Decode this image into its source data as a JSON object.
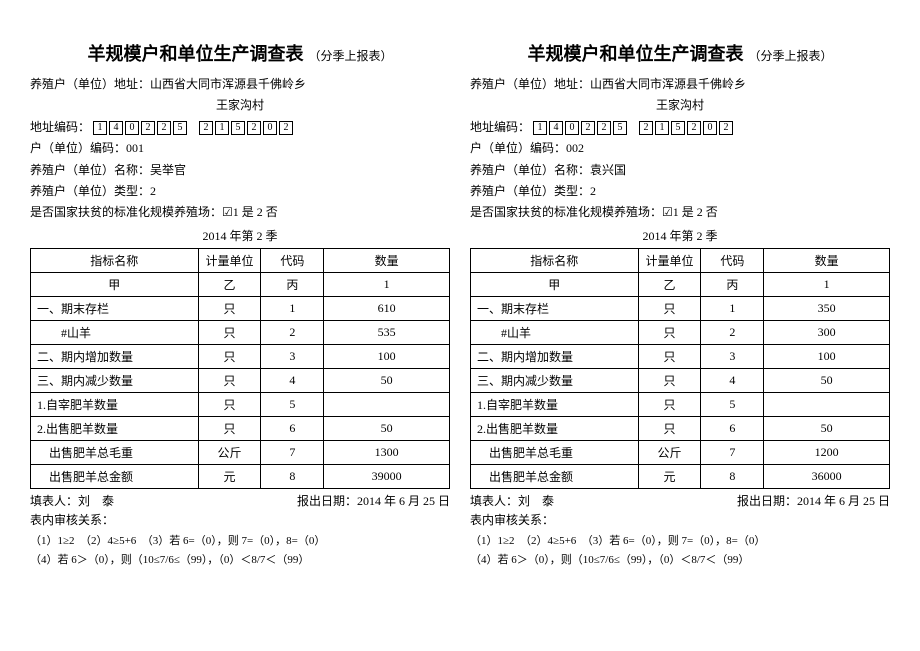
{
  "forms": [
    {
      "title": "羊规模户和单位生产调查表",
      "subtitle": "（分季上报表）",
      "address_label": "养殖户（单位）地址：",
      "address_line1": "山西省大同市浑源县千佛岭乡",
      "address_line2": "王家沟村",
      "code_label": "地址编码：",
      "code_digits": [
        "1",
        "4",
        "0",
        "2",
        "2",
        "5",
        " ",
        "2",
        "1",
        "5",
        "2",
        "0",
        "2"
      ],
      "household_code_label": "户（单位）编码：",
      "household_code": "001",
      "name_label": "养殖户（单位）名称：",
      "name": "吴举官",
      "type_label": "养殖户（单位）类型：",
      "type": "2",
      "poverty_label": "是否国家扶贫的标准化规模养殖场：",
      "poverty_options": "☑1 是 2 否",
      "quarter": "2014 年第 2 季",
      "headers": {
        "name": "指标名称",
        "unit": "计量单位",
        "code": "代码",
        "qty": "数量"
      },
      "header2": {
        "name": "甲",
        "unit": "乙",
        "code": "丙",
        "qty": "1"
      },
      "rows": [
        {
          "name": "一、期末存栏",
          "unit": "只",
          "code": "1",
          "qty": "610"
        },
        {
          "name": "　　#山羊",
          "unit": "只",
          "code": "2",
          "qty": "535"
        },
        {
          "name": "二、期内增加数量",
          "unit": "只",
          "code": "3",
          "qty": "100"
        },
        {
          "name": "三、期内减少数量",
          "unit": "只",
          "code": "4",
          "qty": "50"
        },
        {
          "name": "1.自宰肥羊数量",
          "unit": "只",
          "code": "5",
          "qty": ""
        },
        {
          "name": "2.出售肥羊数量",
          "unit": "只",
          "code": "6",
          "qty": "50"
        },
        {
          "name": "　出售肥羊总毛重",
          "unit": "公斤",
          "code": "7",
          "qty": "1300"
        },
        {
          "name": "　出售肥羊总金额",
          "unit": "元",
          "code": "8",
          "qty": "39000"
        }
      ],
      "filler_label": "填表人：",
      "filler": "刘　泰",
      "report_date_label": "报出日期：",
      "report_date": "2014 年 6 月 25 日",
      "audit_label": "表内审核关系：",
      "rule1": "（1）1≥2　（2）4≥5+6　（3）若 6=（0），则 7=（0），8=（0）",
      "rule2": "（4）若 6＞（0），则（10≤7/6≤（99），（0）＜8/7＜（99）"
    },
    {
      "title": "羊规模户和单位生产调查表",
      "subtitle": "（分季上报表）",
      "address_label": "养殖户（单位）地址：",
      "address_line1": "山西省大同市浑源县千佛岭乡",
      "address_line2": "王家沟村",
      "code_label": "地址编码：",
      "code_digits": [
        "1",
        "4",
        "0",
        "2",
        "2",
        "5",
        " ",
        "2",
        "1",
        "5",
        "2",
        "0",
        "2"
      ],
      "household_code_label": "户（单位）编码：",
      "household_code": "002",
      "name_label": "养殖户（单位）名称：",
      "name": "袁兴国",
      "type_label": "养殖户（单位）类型：",
      "type": "2",
      "poverty_label": "是否国家扶贫的标准化规模养殖场：",
      "poverty_options": "☑1 是 2 否",
      "quarter": "2014 年第 2 季",
      "headers": {
        "name": "指标名称",
        "unit": "计量单位",
        "code": "代码",
        "qty": "数量"
      },
      "header2": {
        "name": "甲",
        "unit": "乙",
        "code": "丙",
        "qty": "1"
      },
      "rows": [
        {
          "name": "一、期末存栏",
          "unit": "只",
          "code": "1",
          "qty": "350"
        },
        {
          "name": "　　#山羊",
          "unit": "只",
          "code": "2",
          "qty": "300"
        },
        {
          "name": "二、期内增加数量",
          "unit": "只",
          "code": "3",
          "qty": "100"
        },
        {
          "name": "三、期内减少数量",
          "unit": "只",
          "code": "4",
          "qty": "50"
        },
        {
          "name": "1.自宰肥羊数量",
          "unit": "只",
          "code": "5",
          "qty": ""
        },
        {
          "name": "2.出售肥羊数量",
          "unit": "只",
          "code": "6",
          "qty": "50"
        },
        {
          "name": "　出售肥羊总毛重",
          "unit": "公斤",
          "code": "7",
          "qty": "1200"
        },
        {
          "name": "　出售肥羊总金额",
          "unit": "元",
          "code": "8",
          "qty": "36000"
        }
      ],
      "filler_label": "填表人：",
      "filler": "刘　泰",
      "report_date_label": "报出日期：",
      "report_date": "2014 年 6 月 25 日",
      "audit_label": "表内审核关系：",
      "rule1": "（1）1≥2　（2）4≥5+6　（3）若 6=（0），则 7=（0），8=（0）",
      "rule2": "（4）若 6＞（0），则（10≤7/6≤（99），（0）＜8/7＜（99）"
    }
  ]
}
